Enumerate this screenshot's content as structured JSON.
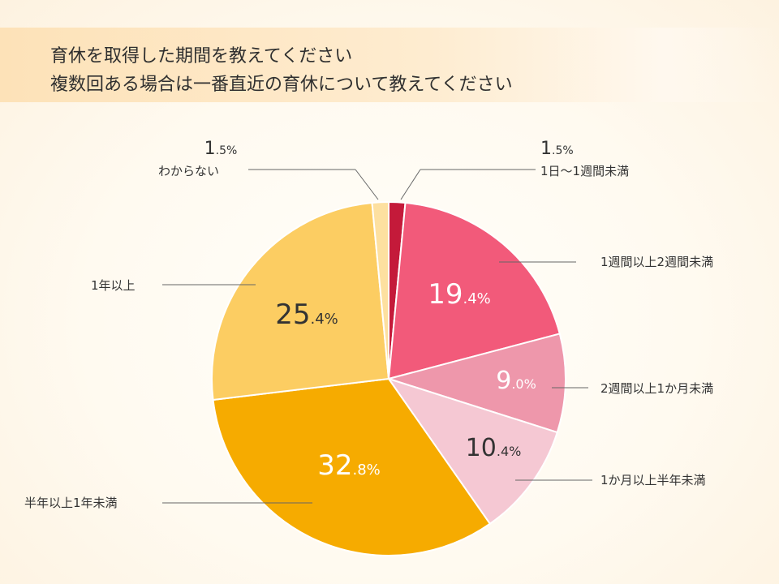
{
  "chart_data": {
    "type": "pie",
    "title_lines": [
      "育休を取得した期間を教えてください",
      "複数回ある場合は一番直近の育休について教えてください"
    ],
    "slices": [
      {
        "label": "1日〜1週間未満",
        "value": 1.5,
        "num": "1",
        "dec": ".5",
        "unit": "%",
        "color": "#c41a3a",
        "text_color": "#333333"
      },
      {
        "label": "1週間以上2週間未満",
        "value": 19.4,
        "num": "19",
        "dec": ".4",
        "unit": "%",
        "color": "#f25a7a",
        "text_color": "#ffffff"
      },
      {
        "label": "2週間以上1か月未満",
        "value": 9.0,
        "num": "9",
        "dec": ".0",
        "unit": "%",
        "color": "#ee97ab",
        "text_color": "#ffffff"
      },
      {
        "label": "1か月以上半年未満",
        "value": 10.4,
        "num": "10",
        "dec": ".4",
        "unit": "%",
        "color": "#f5c8d3",
        "text_color": "#333333"
      },
      {
        "label": "半年以上1年未満",
        "value": 32.8,
        "num": "32",
        "dec": ".8",
        "unit": "%",
        "color": "#f6ab00",
        "text_color": "#ffffff"
      },
      {
        "label": "1年以上",
        "value": 25.4,
        "num": "25",
        "dec": ".4",
        "unit": "%",
        "color": "#fccd62",
        "text_color": "#333333"
      },
      {
        "label": "わからない",
        "value": 1.5,
        "num": "1",
        "dec": ".5",
        "unit": "%",
        "color": "#fde0a0",
        "text_color": "#333333"
      }
    ]
  }
}
